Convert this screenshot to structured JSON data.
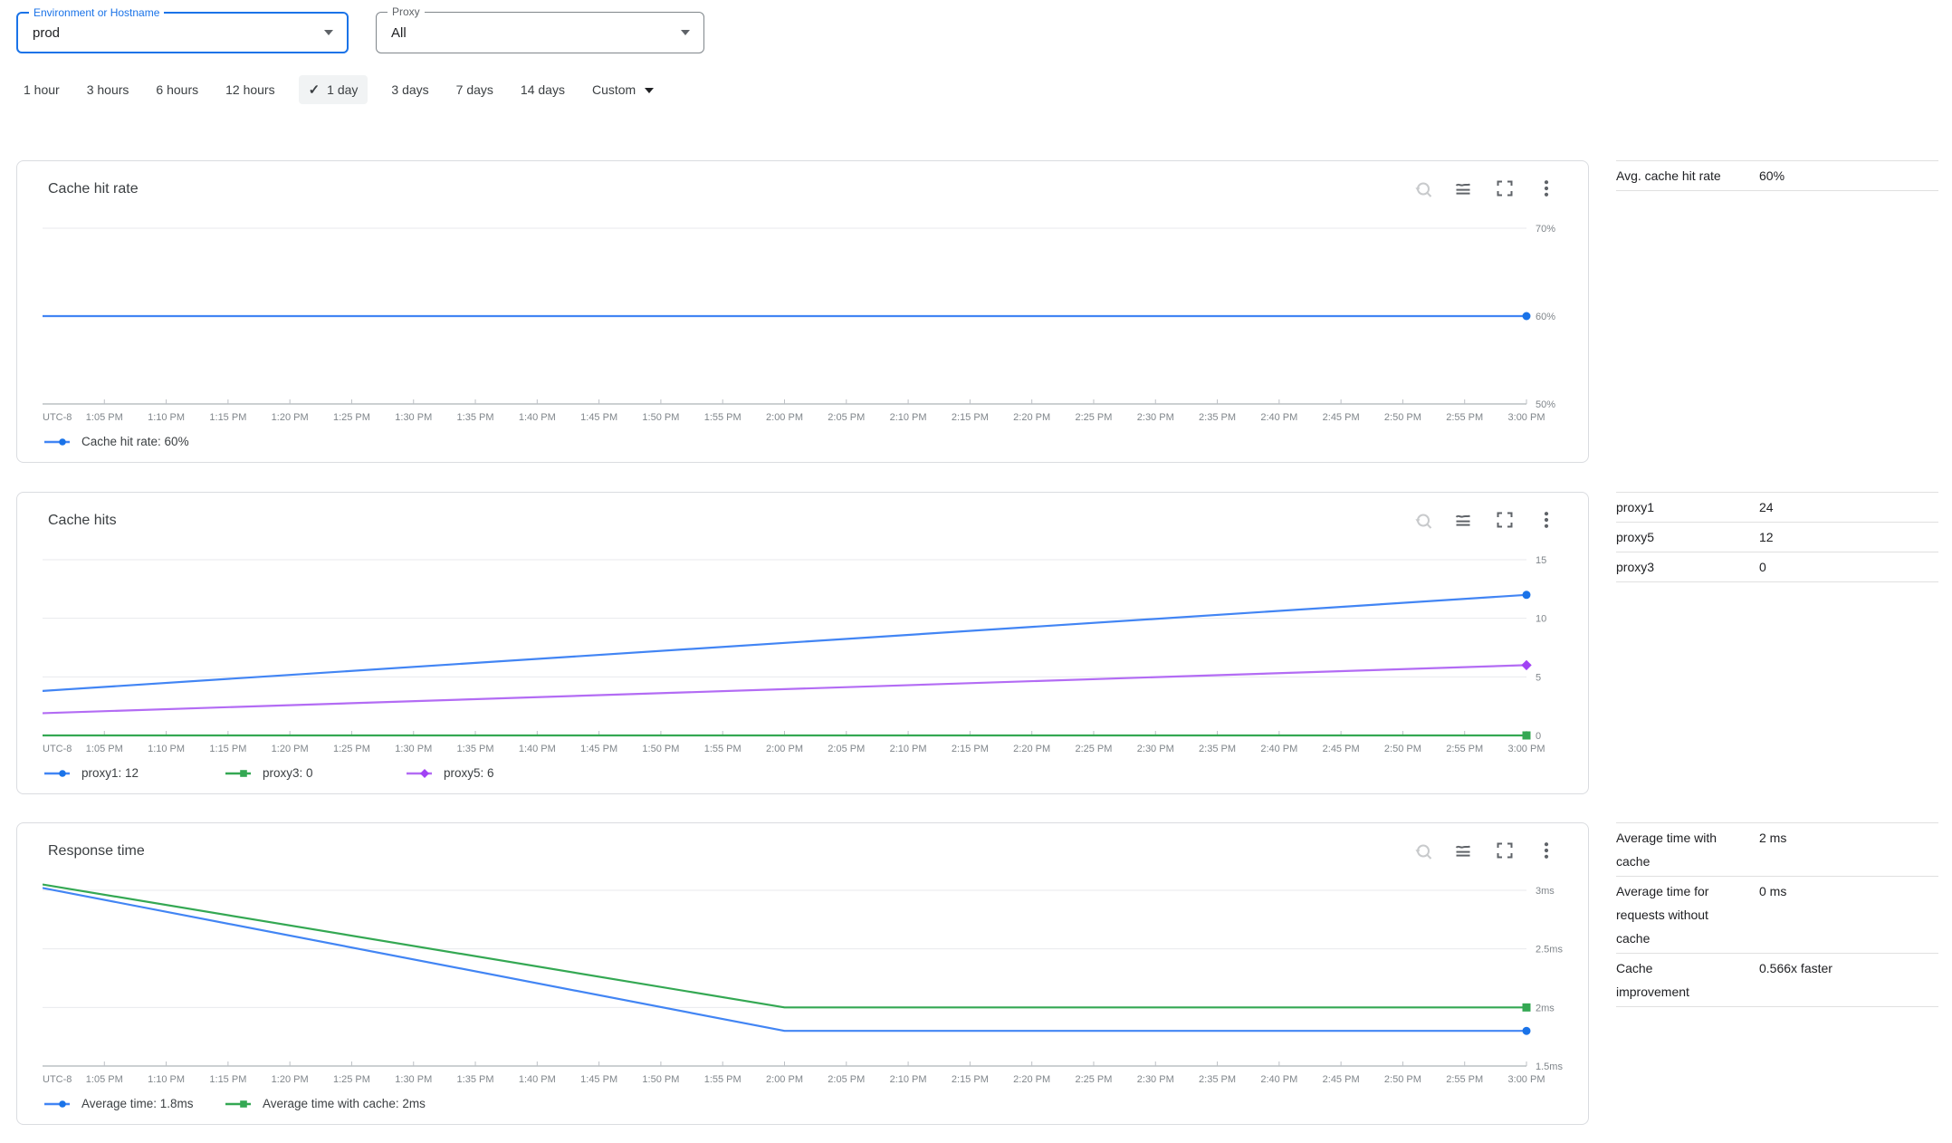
{
  "filters": {
    "environment": {
      "label": "Environment or Hostname",
      "value": "prod"
    },
    "proxy": {
      "label": "Proxy",
      "value": "All"
    }
  },
  "time_range": {
    "options": [
      "1 hour",
      "3 hours",
      "6 hours",
      "12 hours",
      "1 day",
      "3 days",
      "7 days",
      "14 days"
    ],
    "selected": "1 day",
    "check": "✓",
    "custom_label": "Custom"
  },
  "toolbar": {
    "icons": [
      "zoom-reset",
      "chart-style",
      "fullscreen",
      "more-options"
    ]
  },
  "chart_data": [
    {
      "type": "line",
      "title": "Cache hit rate",
      "tz_label": "UTC-8",
      "x_labels": [
        "1:05 PM",
        "1:10 PM",
        "1:15 PM",
        "1:20 PM",
        "1:25 PM",
        "1:30 PM",
        "1:35 PM",
        "1:40 PM",
        "1:45 PM",
        "1:50 PM",
        "1:55 PM",
        "2:00 PM",
        "2:05 PM",
        "2:10 PM",
        "2:15 PM",
        "2:20 PM",
        "2:25 PM",
        "2:30 PM",
        "2:35 PM",
        "2:40 PM",
        "2:45 PM",
        "2:50 PM",
        "2:55 PM",
        "3:00 PM"
      ],
      "ylim": [
        50,
        70
      ],
      "yticks": [
        {
          "value": 70,
          "label": "70%"
        },
        {
          "value": 60,
          "label": "60%"
        },
        {
          "value": 50,
          "label": "50%"
        }
      ],
      "series": [
        {
          "name": "Cache hit rate",
          "legend_label": "Cache hit rate: 60%",
          "color": "#4285f4",
          "marker_color": "#1a73e8",
          "marker": "circle",
          "points": [
            [
              0,
              60
            ],
            [
              1,
              60
            ]
          ]
        }
      ]
    },
    {
      "type": "line",
      "title": "Cache hits",
      "tz_label": "UTC-8",
      "x_labels": [
        "1:05 PM",
        "1:10 PM",
        "1:15 PM",
        "1:20 PM",
        "1:25 PM",
        "1:30 PM",
        "1:35 PM",
        "1:40 PM",
        "1:45 PM",
        "1:50 PM",
        "1:55 PM",
        "2:00 PM",
        "2:05 PM",
        "2:10 PM",
        "2:15 PM",
        "2:20 PM",
        "2:25 PM",
        "2:30 PM",
        "2:35 PM",
        "2:40 PM",
        "2:45 PM",
        "2:50 PM",
        "2:55 PM",
        "3:00 PM"
      ],
      "ylim": [
        0,
        15
      ],
      "yticks": [
        {
          "value": 15,
          "label": "15"
        },
        {
          "value": 10,
          "label": "10"
        },
        {
          "value": 5,
          "label": "5"
        },
        {
          "value": 0,
          "label": "0"
        }
      ],
      "series": [
        {
          "name": "proxy1",
          "legend_label": "proxy1: 12",
          "color": "#4285f4",
          "marker_color": "#1a73e8",
          "marker": "circle",
          "points": [
            [
              0,
              3.8
            ],
            [
              1,
              12
            ]
          ]
        },
        {
          "name": "proxy3",
          "legend_label": "proxy3: 0",
          "color": "#34a853",
          "marker_color": "#34a853",
          "marker": "square",
          "points": [
            [
              0,
              0
            ],
            [
              1,
              0
            ]
          ]
        },
        {
          "name": "proxy5",
          "legend_label": "proxy5: 6",
          "color": "#b36cf4",
          "marker_color": "#a142f4",
          "marker": "diamond",
          "points": [
            [
              0,
              1.9
            ],
            [
              1,
              6
            ]
          ]
        }
      ]
    },
    {
      "type": "line",
      "title": "Response time",
      "tz_label": "UTC-8",
      "x_labels": [
        "1:05 PM",
        "1:10 PM",
        "1:15 PM",
        "1:20 PM",
        "1:25 PM",
        "1:30 PM",
        "1:35 PM",
        "1:40 PM",
        "1:45 PM",
        "1:50 PM",
        "1:55 PM",
        "2:00 PM",
        "2:05 PM",
        "2:10 PM",
        "2:15 PM",
        "2:20 PM",
        "2:25 PM",
        "2:30 PM",
        "2:35 PM",
        "2:40 PM",
        "2:45 PM",
        "2:50 PM",
        "2:55 PM",
        "3:00 PM"
      ],
      "ylim": [
        1.5,
        3
      ],
      "yticks": [
        {
          "value": 3,
          "label": "3ms"
        },
        {
          "value": 2.5,
          "label": "2.5ms"
        },
        {
          "value": 2,
          "label": "2ms"
        },
        {
          "value": 1.5,
          "label": "1.5ms"
        }
      ],
      "series": [
        {
          "name": "Average time",
          "legend_label": "Average time: 1.8ms",
          "color": "#4285f4",
          "marker_color": "#1a73e8",
          "marker": "circle",
          "points": [
            [
              0,
              3.02
            ],
            [
              0.5,
              1.8
            ],
            [
              1,
              1.8
            ]
          ]
        },
        {
          "name": "Average time with cache",
          "legend_label": "Average time with cache: 2ms",
          "color": "#34a853",
          "marker_color": "#34a853",
          "marker": "square",
          "points": [
            [
              0,
              3.05
            ],
            [
              0.5,
              2
            ],
            [
              1,
              2
            ]
          ]
        }
      ]
    }
  ],
  "sidebar": {
    "sections": [
      {
        "rows": [
          {
            "label": "Avg. cache hit rate",
            "value": "60%"
          }
        ]
      },
      {
        "rows": [
          {
            "label": "proxy1",
            "value": "24"
          },
          {
            "label": "proxy5",
            "value": "12"
          },
          {
            "label": "proxy3",
            "value": "0"
          }
        ]
      },
      {
        "rows": [
          {
            "label": "Average time with cache",
            "value": "2 ms"
          },
          {
            "label": "Average time for requests without cache",
            "value": "0 ms"
          },
          {
            "label": "Cache improvement",
            "value": "0.566x faster"
          }
        ]
      }
    ]
  },
  "colors": {
    "accent_blue": "#1a73e8",
    "series_blue": "#4285f4",
    "series_green": "#34a853",
    "series_purple": "#b36cf4",
    "axis_text": "#80868b",
    "grid": "#e8eaed",
    "icon_gray": "#5f6368",
    "icon_disabled": "#c8cacc",
    "border": "#dadce0"
  }
}
